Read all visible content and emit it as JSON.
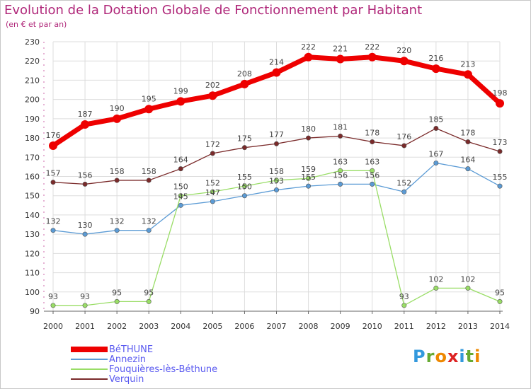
{
  "chart_data": {
    "type": "line",
    "title": "Evolution de la Dotation Globale de Fonctionnement par Habitant",
    "subtitle": "(en € et par an)",
    "xlabel": "",
    "ylabel": "",
    "x": [
      "2000",
      "2001",
      "2002",
      "2003",
      "2004",
      "2005",
      "2006",
      "2007",
      "2008",
      "2009",
      "2010",
      "2011",
      "2012",
      "2013",
      "2014"
    ],
    "ylim": [
      90,
      230
    ],
    "yticks": [
      "90",
      "100",
      "110",
      "120",
      "130",
      "140",
      "150",
      "160",
      "170",
      "180",
      "190",
      "200",
      "210",
      "220",
      "230"
    ],
    "grid": true,
    "legend_position": "bottom-left",
    "series": [
      {
        "name": "BéTHUNE",
        "color": "#ee0000",
        "values": [
          176,
          187,
          190,
          195,
          199,
          202,
          208,
          214,
          222,
          221,
          222,
          220,
          216,
          213,
          198
        ]
      },
      {
        "name": "Annezin",
        "color": "#5b9bd5",
        "values": [
          132,
          130,
          132,
          132,
          145,
          147,
          150,
          153,
          155,
          156,
          156,
          152,
          167,
          164,
          155
        ]
      },
      {
        "name": "Fouquières-lès-Béthune",
        "color": "#99dd66",
        "values": [
          93,
          93,
          95,
          95,
          150,
          152,
          155,
          158,
          159,
          163,
          163,
          93,
          102,
          102,
          95
        ]
      },
      {
        "name": "Verquin",
        "color": "#7a2a2a",
        "values": [
          157,
          156,
          158,
          158,
          164,
          172,
          175,
          177,
          180,
          181,
          178,
          176,
          185,
          178,
          173
        ]
      }
    ]
  },
  "logo": {
    "letters": [
      "P",
      "r",
      "o",
      "x",
      "i",
      "t",
      "i"
    ],
    "colors": [
      "#3399dd",
      "#66aa33",
      "#ee8800",
      "#dd2222",
      "#3399dd",
      "#66aa33",
      "#ee8800"
    ]
  }
}
